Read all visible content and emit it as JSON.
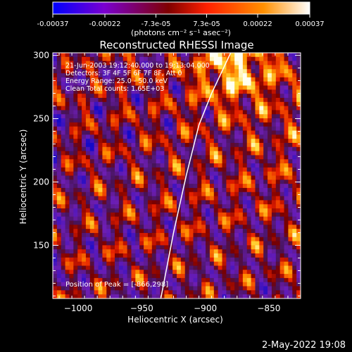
{
  "colorbar": {
    "tick_labels": [
      "-0.00037",
      "-0.00022",
      "-7.3e-05",
      "7.3e-05",
      "0.00022",
      "0.00037"
    ],
    "tick_values": [
      -0.00037,
      -0.00022,
      -7.3e-05,
      7.3e-05,
      0.00022,
      0.00037
    ],
    "range": [
      -0.00037,
      0.00037
    ],
    "unit_label": "(photons cm⁻² s⁻¹ asec⁻²)",
    "colors": [
      "#0000ff",
      "#7a00d0",
      "#800000",
      "#ff2000",
      "#ff9000",
      "#ffffff"
    ]
  },
  "chart_data": {
    "type": "heatmap",
    "title": "Reconstructed RHESSI Image",
    "xlabel": "Heliocentric X (arcsec)",
    "ylabel": "Heliocentric Y (arcsec)",
    "xlim": [
      -1020,
      -825
    ],
    "ylim": [
      108,
      302
    ],
    "xticks": [
      -1000,
      -950,
      -900,
      -850
    ],
    "yticks": [
      150,
      200,
      250,
      300
    ],
    "xtick_labels": [
      "−1000",
      "−950",
      "−900",
      "−850"
    ],
    "ytick_labels": [
      "150",
      "200",
      "250",
      "300"
    ],
    "annotations": [
      "21-Jun-2003 19:12:40.000 to 19:13:04.000",
      "Detectors: 3F 4F 5F 6F 7F 8F, Att 0",
      "Energy Range: 25.0 - 50.0 keV",
      "Clean     Total counts: 1.65E+03"
    ],
    "peak_label": "Position of Peak = [-866,298]",
    "peak_position": [
      -866,
      298
    ],
    "limb_curve": [
      [
        -935,
        108
      ],
      [
        -925,
        160
      ],
      [
        -915,
        205
      ],
      [
        -905,
        245
      ],
      [
        -895,
        270
      ],
      [
        -880,
        302
      ]
    ]
  },
  "footer": {
    "timestamp": "2-May-2022 19:08"
  }
}
